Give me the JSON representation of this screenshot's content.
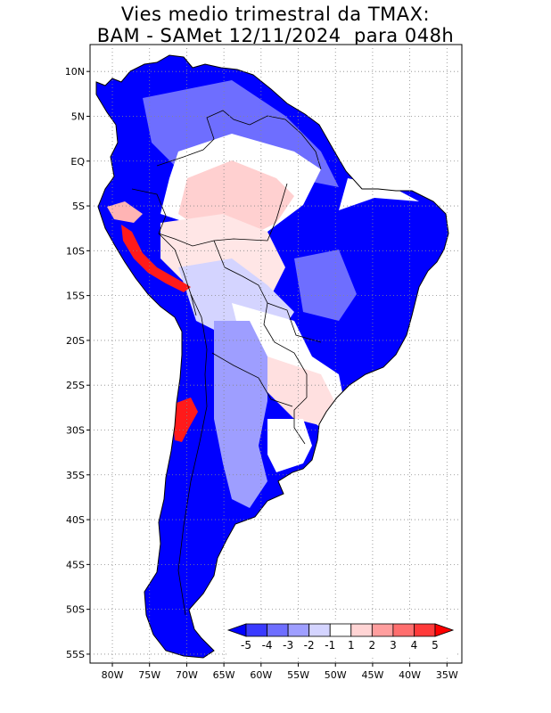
{
  "title": {
    "line1": "Vies medio trimestral da TMAX:",
    "line2": "BAM - SAMet 12/11/2024  para 048h"
  },
  "axes": {
    "lat_labels": [
      "10N",
      "5N",
      "EQ",
      "5S",
      "10S",
      "15S",
      "20S",
      "25S",
      "30S",
      "35S",
      "40S",
      "45S",
      "50S",
      "55S"
    ],
    "lon_labels": [
      "80W",
      "75W",
      "70W",
      "65W",
      "60W",
      "55W",
      "50W",
      "45W",
      "40W",
      "35W"
    ],
    "lat_values": [
      10,
      5,
      0,
      -5,
      -10,
      -15,
      -20,
      -25,
      -30,
      -35,
      -40,
      -45,
      -50,
      -55
    ],
    "lon_values": [
      -80,
      -75,
      -70,
      -65,
      -60,
      -55,
      -50,
      -45,
      -40,
      -35
    ],
    "lon_range": [
      -83,
      -33
    ],
    "lat_range": [
      -56,
      13
    ],
    "grid": "dotted"
  },
  "colorbar": {
    "labels": [
      "-5",
      "-4",
      "-3",
      "-2",
      "-1",
      "1",
      "2",
      "3",
      "4",
      "5"
    ],
    "colors": [
      "#0000ff",
      "#3a3aff",
      "#6e6eff",
      "#9e9eff",
      "#d4d4ff",
      "#ffffff",
      "#ffd4d4",
      "#ff9e9e",
      "#ff6e6e",
      "#ff3a3a",
      "#ff0000"
    ],
    "placement": "bottom-right"
  },
  "colors": {
    "ocean": "#ffffff",
    "strong_cold": "#0000ff",
    "mid_cold": "#6e6eff",
    "light_cold": "#d4d4ff",
    "warm": "#ffb4b4",
    "hot": "#ff1a1a",
    "border": "#000000"
  }
}
